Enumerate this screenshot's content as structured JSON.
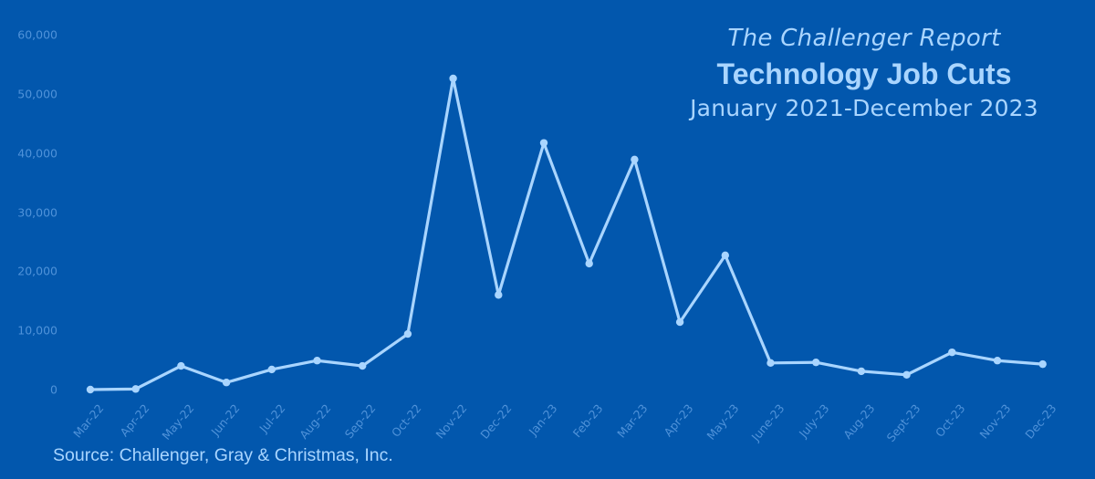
{
  "header": {
    "subtitle_top": "The Challenger Report",
    "title": "Technology Job Cuts",
    "date_range": "January 2021-December 2023"
  },
  "footer": {
    "source": "Source: Challenger, Gray & Christmas, Inc."
  },
  "colors": {
    "background": "#0257ad",
    "line": "#a9d5ff",
    "axis_text": "#4f92d9",
    "title_text": "#a9d5ff"
  },
  "chart_data": {
    "type": "line",
    "title": "Technology Job Cuts",
    "subtitle": "The Challenger Report — January 2021-December 2023",
    "xlabel": "",
    "ylabel": "",
    "ylim": [
      0,
      60000
    ],
    "yticks": [
      "0",
      "10,000",
      "20,000",
      "30,000",
      "40,000",
      "50,000",
      "60,000"
    ],
    "grid": false,
    "legend": null,
    "categories": [
      "Mar-22",
      "Apr-22",
      "May-22",
      "Jun-22",
      "Jul-22",
      "Aug-22",
      "Sep-22",
      "Oct-22",
      "Nov-22",
      "Dec-22",
      "Jan-23",
      "Feb-23",
      "Mar-23",
      "Apr-23",
      "May-23",
      "June-23",
      "July-23",
      "Aug-23",
      "Sept-23",
      "Oct-23",
      "Nov-23",
      "Dec-23"
    ],
    "series": [
      {
        "name": "Technology Job Cuts",
        "values": [
          0,
          100,
          4000,
          1200,
          3400,
          4900,
          4000,
          9400,
          52600,
          16000,
          41700,
          21300,
          38900,
          11400,
          22700,
          4500,
          4600,
          3100,
          2500,
          6300,
          4900,
          4300
        ]
      }
    ],
    "annotations": [
      "Source: Challenger, Gray & Christmas, Inc."
    ]
  }
}
